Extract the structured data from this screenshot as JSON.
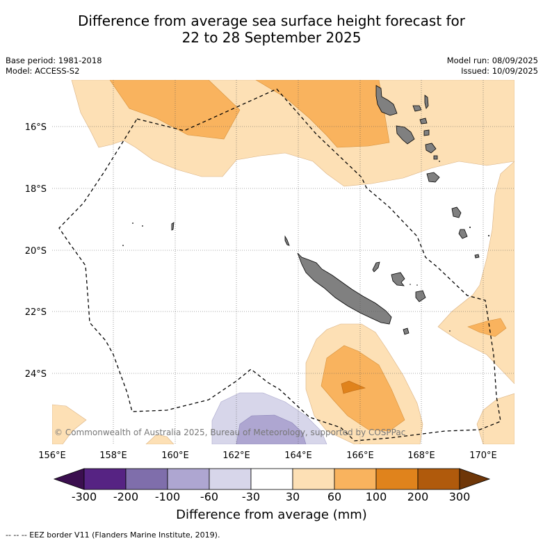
{
  "title": {
    "line1": "Difference from average sea surface height forecast for",
    "line2": "22 to 28 September 2025"
  },
  "meta": {
    "base_period": "Base period: 1981-2018",
    "model": "Model: ACCESS-S2",
    "model_run": "Model run: 08/09/2025",
    "issued": "Issued: 10/09/2025"
  },
  "map": {
    "longitude_ticks": [
      "156°E",
      "158°E",
      "160°E",
      "162°E",
      "164°E",
      "166°E",
      "168°E",
      "170°E"
    ],
    "latitude_ticks": [
      "16°S",
      "18°S",
      "20°S",
      "22°S",
      "24°S"
    ],
    "attribution": "© Commonwealth of Australia 2025, Bureau of Meteorology, supported by COSPPac",
    "land_color": "#808080"
  },
  "colorbar": {
    "labels": [
      "-300",
      "-200",
      "-100",
      "-60",
      "-30",
      "30",
      "60",
      "100",
      "200",
      "300"
    ],
    "colors": [
      "#3b0f4f",
      "#562383",
      "#7f6eab",
      "#aea6d1",
      "#d7d6ea",
      "#ffffff",
      "#fde0b5",
      "#f9b35e",
      "#e0831c",
      "#b05a0c",
      "#6e3608"
    ],
    "title": "Difference from average (mm)"
  },
  "footer": {
    "eez_legend": "--  --  -- EEZ border V11 (Flanders Marine Institute, 2019)."
  }
}
